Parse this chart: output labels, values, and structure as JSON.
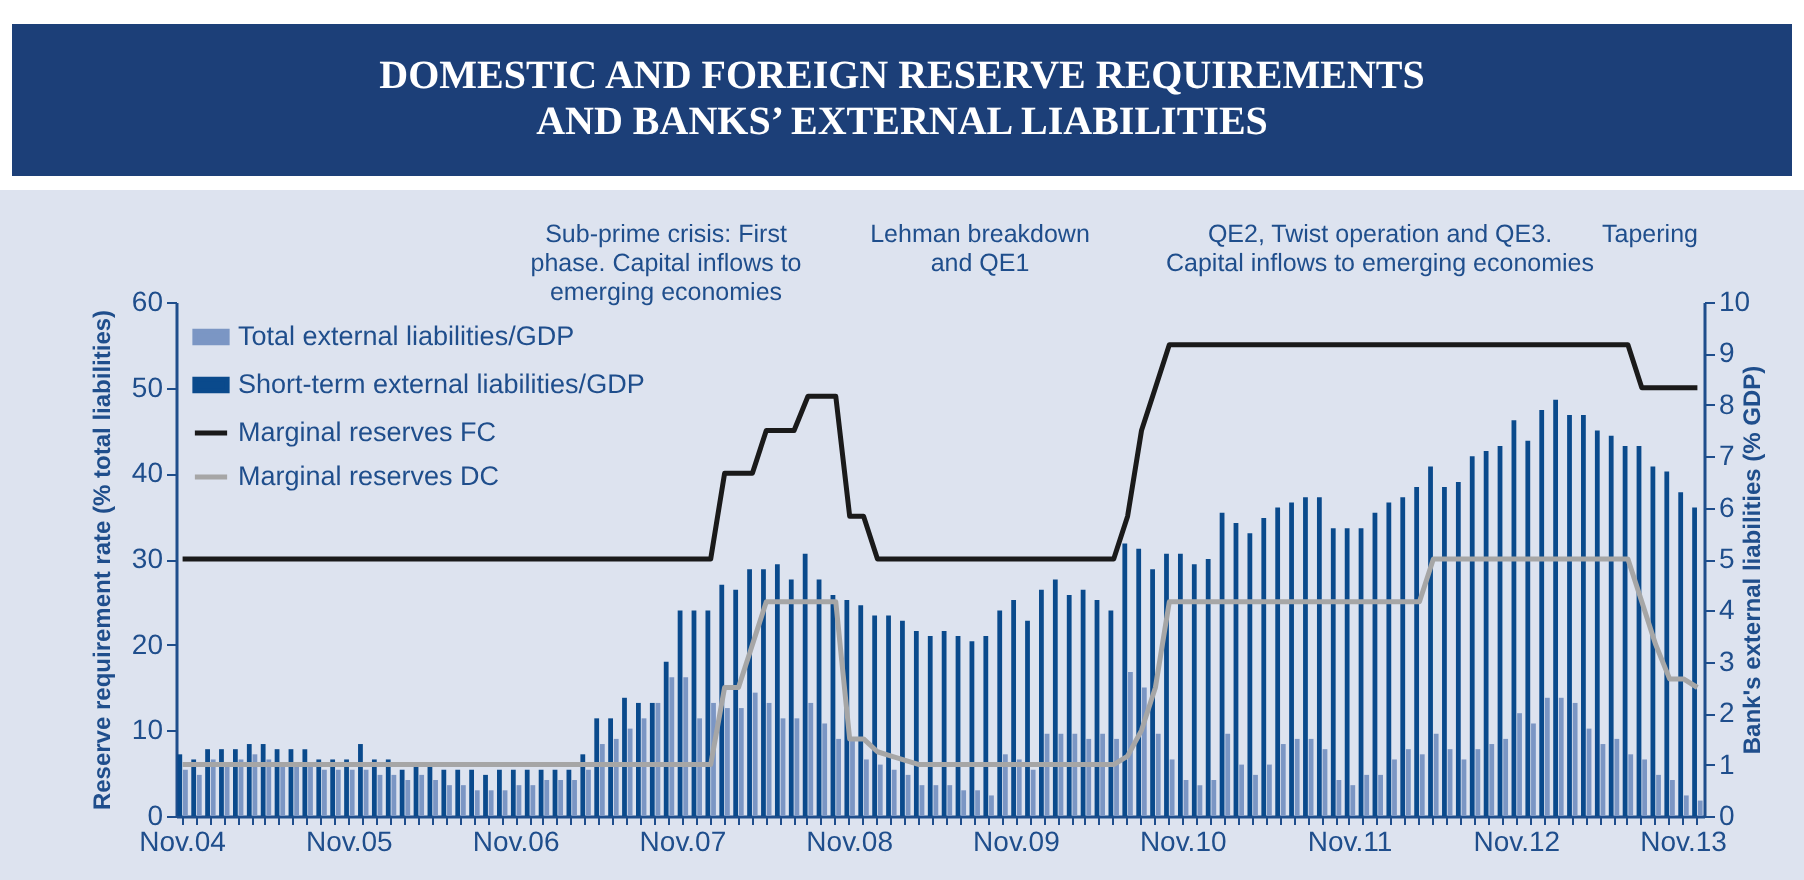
{
  "chart_data": {
    "type": "bar",
    "title": "DOMESTIC AND FOREIGN RESERVE REQUIREMENTS AND BANKS’ EXTERNAL LIABILITIES",
    "ylabel": "Reserve requirement rate (% total liabilities)",
    "y2label": "Bank's external liabilities (% GDP)",
    "annotations": [
      "Sub-prime crisis: First phase. Capital inflows to emerging economies",
      "Lehman breakdown and QE1",
      "QE2, Twist operation and QE3. Capital inflows to emerging economies",
      "Tapering"
    ],
    "categories": [
      "Nov.04",
      null,
      null,
      null,
      null,
      null,
      null,
      null,
      null,
      null,
      null,
      null,
      "Nov.05",
      null,
      null,
      null,
      null,
      null,
      null,
      null,
      null,
      null,
      null,
      null,
      "Nov.06",
      null,
      null,
      null,
      null,
      null,
      null,
      null,
      null,
      null,
      null,
      null,
      "Nov.07",
      null,
      null,
      null,
      null,
      null,
      null,
      null,
      null,
      null,
      null,
      null,
      "Nov.08",
      null,
      null,
      null,
      null,
      null,
      null,
      null,
      null,
      null,
      null,
      null,
      "Nov.09",
      null,
      null,
      null,
      null,
      null,
      null,
      null,
      null,
      null,
      null,
      null,
      "Nov.10",
      null,
      null,
      null,
      null,
      null,
      null,
      null,
      null,
      null,
      null,
      null,
      "Nov.11",
      null,
      null,
      null,
      null,
      null,
      null,
      null,
      null,
      null,
      null,
      null,
      "Nov.12",
      null,
      null,
      null,
      null,
      null,
      null,
      null,
      null,
      null,
      null,
      null,
      "Nov.13",
      null
    ],
    "series": [
      {
        "name": "Total external liabilities/GDP",
        "axis": "y2",
        "color": "#7b96c4",
        "values": [
          0.9,
          0.8,
          1.1,
          1.0,
          1.1,
          1.2,
          1.1,
          1.0,
          1.0,
          1.0,
          0.9,
          0.9,
          0.9,
          0.9,
          0.8,
          0.8,
          0.7,
          0.8,
          0.7,
          0.6,
          0.6,
          0.5,
          0.5,
          0.5,
          0.6,
          0.6,
          0.7,
          0.7,
          0.7,
          0.9,
          1.4,
          1.5,
          1.7,
          1.9,
          2.2,
          2.7,
          2.7,
          1.9,
          2.2,
          2.1,
          2.1,
          2.4,
          2.2,
          1.9,
          1.9,
          2.2,
          1.8,
          1.5,
          1.5,
          1.1,
          1.0,
          0.9,
          0.8,
          0.6,
          0.6,
          0.6,
          0.5,
          0.5,
          0.4,
          1.2,
          1.1,
          0.9,
          1.6,
          1.6,
          1.6,
          1.5,
          1.6,
          1.5,
          2.8,
          2.5,
          1.6,
          1.1,
          0.7,
          0.6,
          0.7,
          1.6,
          1.0,
          0.8,
          1.0,
          1.4,
          1.5,
          1.5,
          1.3,
          0.7,
          0.6,
          0.8,
          0.8,
          1.1,
          1.3,
          1.2,
          1.6,
          1.3,
          1.1,
          1.3,
          1.4,
          1.5,
          2.0,
          1.8,
          2.3,
          2.3,
          2.2,
          1.7,
          1.4,
          1.5,
          1.2,
          1.1,
          0.8,
          0.7,
          0.4,
          0.3
        ]
      },
      {
        "name": "Short-term external liabilities/GDP",
        "axis": "y2",
        "color": "#0a4a8c",
        "values": [
          1.2,
          1.1,
          1.3,
          1.3,
          1.3,
          1.4,
          1.4,
          1.3,
          1.3,
          1.3,
          1.1,
          1.1,
          1.1,
          1.4,
          1.1,
          1.1,
          0.9,
          1.0,
          1.0,
          0.9,
          0.9,
          0.9,
          0.8,
          0.9,
          0.9,
          0.9,
          0.9,
          0.9,
          0.9,
          1.2,
          1.9,
          1.9,
          2.3,
          2.2,
          2.2,
          3.0,
          4.0,
          4.0,
          4.0,
          4.5,
          4.4,
          4.8,
          4.8,
          4.9,
          4.6,
          5.1,
          4.6,
          4.3,
          4.2,
          4.1,
          3.9,
          3.9,
          3.8,
          3.6,
          3.5,
          3.6,
          3.5,
          3.4,
          3.5,
          4.0,
          4.2,
          3.8,
          4.4,
          4.6,
          4.3,
          4.4,
          4.2,
          4.0,
          5.3,
          5.2,
          4.8,
          5.1,
          5.1,
          4.9,
          5.0,
          5.9,
          5.7,
          5.5,
          5.8,
          6.0,
          6.1,
          6.2,
          6.2,
          5.6,
          5.6,
          5.6,
          5.9,
          6.1,
          6.2,
          6.4,
          6.8,
          6.4,
          6.5,
          7.0,
          7.1,
          7.2,
          7.7,
          7.3,
          7.9,
          8.1,
          7.8,
          7.8,
          7.5,
          7.4,
          7.2,
          7.2,
          6.8,
          6.7,
          6.3,
          6.0
        ]
      },
      {
        "name": "Marginal reserves FC",
        "type": "line",
        "color": "#1a1a1a",
        "values": [
          30,
          30,
          30,
          30,
          30,
          30,
          30,
          30,
          30,
          30,
          30,
          30,
          30,
          30,
          30,
          30,
          30,
          30,
          30,
          30,
          30,
          30,
          30,
          30,
          30,
          30,
          30,
          30,
          30,
          30,
          30,
          30,
          30,
          30,
          30,
          30,
          30,
          30,
          30,
          40,
          40,
          40,
          45,
          45,
          45,
          49,
          49,
          49,
          35,
          35,
          30,
          30,
          30,
          30,
          30,
          30,
          30,
          30,
          30,
          30,
          30,
          30,
          30,
          30,
          30,
          30,
          30,
          30,
          35,
          45,
          50,
          55,
          55,
          55,
          55,
          55,
          55,
          55,
          55,
          55,
          55,
          55,
          55,
          55,
          55,
          55,
          55,
          55,
          55,
          55,
          55,
          55,
          55,
          55,
          55,
          55,
          55,
          55,
          55,
          55,
          55,
          55,
          55,
          55,
          55,
          50,
          50,
          50,
          50,
          50
        ]
      },
      {
        "name": "Marginal reserves DC",
        "type": "line",
        "color": "#a6a6a6",
        "values": [
          6,
          6,
          6,
          6,
          6,
          6,
          6,
          6,
          6,
          6,
          6,
          6,
          6,
          6,
          6,
          6,
          6,
          6,
          6,
          6,
          6,
          6,
          6,
          6,
          6,
          6,
          6,
          6,
          6,
          6,
          6,
          6,
          6,
          6,
          6,
          6,
          6,
          6,
          6,
          15,
          15,
          20,
          25,
          25,
          25,
          25,
          25,
          25,
          9,
          9,
          7.5,
          7,
          6.5,
          6,
          6,
          6,
          6,
          6,
          6,
          6,
          6,
          6,
          6,
          6,
          6,
          6,
          6,
          6,
          7,
          10,
          15,
          25,
          25,
          25,
          25,
          25,
          25,
          25,
          25,
          25,
          25,
          25,
          25,
          25,
          25,
          25,
          25,
          25,
          25,
          25,
          30,
          30,
          30,
          30,
          30,
          30,
          30,
          30,
          30,
          30,
          30,
          30,
          30,
          30,
          30,
          25,
          20,
          16,
          16,
          15
        ]
      }
    ],
    "ylim": [
      0,
      60
    ],
    "yticks": [
      0,
      10,
      20,
      30,
      40,
      50,
      60
    ],
    "y2lim": [
      0,
      10
    ],
    "y2ticks": [
      0,
      1,
      2,
      3,
      4,
      5,
      6,
      7,
      8,
      9,
      10
    ],
    "grid": false,
    "legend": "top left",
    "line_style": "solid"
  }
}
